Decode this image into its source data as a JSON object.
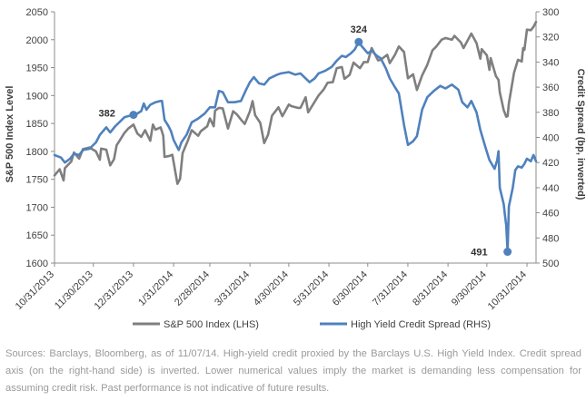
{
  "chart_data": {
    "type": "line",
    "y_left": {
      "label": "S&P 500 Index Level",
      "lim": [
        1600,
        2050
      ],
      "ticks": [
        1600,
        1650,
        1700,
        1750,
        1800,
        1850,
        1900,
        1950,
        2000,
        2050
      ]
    },
    "y_right": {
      "label": "Credit Spread (bp, inverted)",
      "lim": [
        300,
        500
      ],
      "inverted": true,
      "ticks": [
        300,
        320,
        340,
        360,
        380,
        400,
        420,
        440,
        460,
        480,
        500
      ]
    },
    "x_ticks": [
      "10/31/2013",
      "11/30/2013",
      "12/31/2013",
      "1/31/2014",
      "2/28/2014",
      "3/31/2014",
      "4/30/2014",
      "5/31/2014",
      "6/30/2014",
      "7/31/2014",
      "8/31/2014",
      "9/30/2014",
      "10/31/2014"
    ],
    "x_range": [
      "2013-10-31",
      "2014-11-07"
    ],
    "grid": false,
    "legend_position": "bottom",
    "series": [
      {
        "name": "S&P 500 Index (LHS)",
        "axis": "left",
        "color": "#7f7f7f",
        "points": [
          [
            "2013-10-31",
            1757
          ],
          [
            "2013-11-04",
            1768
          ],
          [
            "2013-11-07",
            1748
          ],
          [
            "2013-11-08",
            1770
          ],
          [
            "2013-11-13",
            1782
          ],
          [
            "2013-11-15",
            1798
          ],
          [
            "2013-11-19",
            1787
          ],
          [
            "2013-11-22",
            1804
          ],
          [
            "2013-11-27",
            1807
          ],
          [
            "2013-12-02",
            1800
          ],
          [
            "2013-12-05",
            1785
          ],
          [
            "2013-12-06",
            1805
          ],
          [
            "2013-12-10",
            1803
          ],
          [
            "2013-12-13",
            1775
          ],
          [
            "2013-12-16",
            1786
          ],
          [
            "2013-12-18",
            1811
          ],
          [
            "2013-12-20",
            1818
          ],
          [
            "2013-12-24",
            1833
          ],
          [
            "2013-12-27",
            1841
          ],
          [
            "2013-12-31",
            1848
          ],
          [
            "2014-01-03",
            1832
          ],
          [
            "2014-01-06",
            1826
          ],
          [
            "2014-01-09",
            1838
          ],
          [
            "2014-01-13",
            1819
          ],
          [
            "2014-01-15",
            1848
          ],
          [
            "2014-01-17",
            1839
          ],
          [
            "2014-01-21",
            1843
          ],
          [
            "2014-01-23",
            1828
          ],
          [
            "2014-01-24",
            1790
          ],
          [
            "2014-01-28",
            1792
          ],
          [
            "2014-01-30",
            1794
          ],
          [
            "2014-02-03",
            1742
          ],
          [
            "2014-02-05",
            1751
          ],
          [
            "2014-02-07",
            1797
          ],
          [
            "2014-02-11",
            1819
          ],
          [
            "2014-02-14",
            1838
          ],
          [
            "2014-02-19",
            1828
          ],
          [
            "2014-02-21",
            1836
          ],
          [
            "2014-02-26",
            1845
          ],
          [
            "2014-02-28",
            1859
          ],
          [
            "2014-03-03",
            1845
          ],
          [
            "2014-03-04",
            1873
          ],
          [
            "2014-03-07",
            1878
          ],
          [
            "2014-03-10",
            1877
          ],
          [
            "2014-03-14",
            1841
          ],
          [
            "2014-03-18",
            1872
          ],
          [
            "2014-03-21",
            1866
          ],
          [
            "2014-03-24",
            1857
          ],
          [
            "2014-03-27",
            1849
          ],
          [
            "2014-03-31",
            1872
          ],
          [
            "2014-04-02",
            1890
          ],
          [
            "2014-04-04",
            1865
          ],
          [
            "2014-04-08",
            1851
          ],
          [
            "2014-04-11",
            1815
          ],
          [
            "2014-04-14",
            1830
          ],
          [
            "2014-04-17",
            1864
          ],
          [
            "2014-04-22",
            1879
          ],
          [
            "2014-04-25",
            1863
          ],
          [
            "2014-04-30",
            1884
          ],
          [
            "2014-05-02",
            1881
          ],
          [
            "2014-05-07",
            1878
          ],
          [
            "2014-05-09",
            1878
          ],
          [
            "2014-05-13",
            1897
          ],
          [
            "2014-05-15",
            1870
          ],
          [
            "2014-05-19",
            1885
          ],
          [
            "2014-05-23",
            1900
          ],
          [
            "2014-05-27",
            1911
          ],
          [
            "2014-05-30",
            1923
          ],
          [
            "2014-06-03",
            1924
          ],
          [
            "2014-06-06",
            1949
          ],
          [
            "2014-06-10",
            1951
          ],
          [
            "2014-06-12",
            1930
          ],
          [
            "2014-06-16",
            1937
          ],
          [
            "2014-06-19",
            1959
          ],
          [
            "2014-06-24",
            1949
          ],
          [
            "2014-06-27",
            1960
          ],
          [
            "2014-06-30",
            1960
          ],
          [
            "2014-07-03",
            1985
          ],
          [
            "2014-07-08",
            1963
          ],
          [
            "2014-07-10",
            1964
          ],
          [
            "2014-07-15",
            1973
          ],
          [
            "2014-07-17",
            1958
          ],
          [
            "2014-07-21",
            1973
          ],
          [
            "2014-07-24",
            1988
          ],
          [
            "2014-07-28",
            1978
          ],
          [
            "2014-07-31",
            1931
          ],
          [
            "2014-08-04",
            1938
          ],
          [
            "2014-08-07",
            1910
          ],
          [
            "2014-08-11",
            1936
          ],
          [
            "2014-08-15",
            1955
          ],
          [
            "2014-08-19",
            1981
          ],
          [
            "2014-08-22",
            1988
          ],
          [
            "2014-08-26",
            2000
          ],
          [
            "2014-08-29",
            2003
          ],
          [
            "2014-09-03",
            2000
          ],
          [
            "2014-09-05",
            2007
          ],
          [
            "2014-09-10",
            1995
          ],
          [
            "2014-09-12",
            1985
          ],
          [
            "2014-09-18",
            2011
          ],
          [
            "2014-09-22",
            1994
          ],
          [
            "2014-09-25",
            1966
          ],
          [
            "2014-09-26",
            1983
          ],
          [
            "2014-09-30",
            1972
          ],
          [
            "2014-10-02",
            1946
          ],
          [
            "2014-10-03",
            1967
          ],
          [
            "2014-10-07",
            1935
          ],
          [
            "2014-10-09",
            1928
          ],
          [
            "2014-10-10",
            1906
          ],
          [
            "2014-10-13",
            1874
          ],
          [
            "2014-10-15",
            1862
          ],
          [
            "2014-10-16",
            1863
          ],
          [
            "2014-10-17",
            1886
          ],
          [
            "2014-10-21",
            1941
          ],
          [
            "2014-10-24",
            1964
          ],
          [
            "2014-10-27",
            1961
          ],
          [
            "2014-10-28",
            1985
          ],
          [
            "2014-10-29",
            1982
          ],
          [
            "2014-10-31",
            2018
          ],
          [
            "2014-11-03",
            2017
          ],
          [
            "2014-11-05",
            2023
          ],
          [
            "2014-11-07",
            2032
          ]
        ]
      },
      {
        "name": "High Yield Credit Spread (RHS)",
        "axis": "right",
        "color": "#4f81bd",
        "points": [
          [
            "2013-10-31",
            414
          ],
          [
            "2013-11-05",
            416
          ],
          [
            "2013-11-08",
            420
          ],
          [
            "2013-11-12",
            417
          ],
          [
            "2013-11-15",
            413
          ],
          [
            "2013-11-19",
            414
          ],
          [
            "2013-11-22",
            410
          ],
          [
            "2013-11-27",
            409
          ],
          [
            "2013-12-02",
            404
          ],
          [
            "2013-12-05",
            398
          ],
          [
            "2013-12-10",
            392
          ],
          [
            "2013-12-13",
            396
          ],
          [
            "2013-12-17",
            391
          ],
          [
            "2013-12-20",
            388
          ],
          [
            "2013-12-24",
            384
          ],
          [
            "2013-12-27",
            383
          ],
          [
            "2013-12-31",
            382
          ],
          [
            "2014-01-03",
            381
          ],
          [
            "2014-01-06",
            379
          ],
          [
            "2014-01-08",
            373
          ],
          [
            "2014-01-10",
            378
          ],
          [
            "2014-01-13",
            374
          ],
          [
            "2014-01-15",
            373
          ],
          [
            "2014-01-17",
            372
          ],
          [
            "2014-01-21",
            371
          ],
          [
            "2014-01-22",
            371
          ],
          [
            "2014-01-24",
            386
          ],
          [
            "2014-01-27",
            391
          ],
          [
            "2014-01-29",
            395
          ],
          [
            "2014-01-31",
            402
          ],
          [
            "2014-02-03",
            408
          ],
          [
            "2014-02-04",
            410
          ],
          [
            "2014-02-06",
            404
          ],
          [
            "2014-02-10",
            398
          ],
          [
            "2014-02-14",
            388
          ],
          [
            "2014-02-19",
            385
          ],
          [
            "2014-02-24",
            381
          ],
          [
            "2014-02-28",
            376
          ],
          [
            "2014-03-04",
            376
          ],
          [
            "2014-03-07",
            363
          ],
          [
            "2014-03-10",
            364
          ],
          [
            "2014-03-14",
            372
          ],
          [
            "2014-03-19",
            372
          ],
          [
            "2014-03-24",
            371
          ],
          [
            "2014-03-28",
            362
          ],
          [
            "2014-03-31",
            356
          ],
          [
            "2014-04-03",
            352
          ],
          [
            "2014-04-07",
            357
          ],
          [
            "2014-04-11",
            358
          ],
          [
            "2014-04-15",
            353
          ],
          [
            "2014-04-21",
            350
          ],
          [
            "2014-04-24",
            349
          ],
          [
            "2014-04-30",
            348
          ],
          [
            "2014-05-05",
            350
          ],
          [
            "2014-05-09",
            349
          ],
          [
            "2014-05-13",
            353
          ],
          [
            "2014-05-16",
            356
          ],
          [
            "2014-05-20",
            353
          ],
          [
            "2014-05-23",
            349
          ],
          [
            "2014-05-28",
            347
          ],
          [
            "2014-06-02",
            344
          ],
          [
            "2014-06-06",
            339
          ],
          [
            "2014-06-10",
            335
          ],
          [
            "2014-06-13",
            336
          ],
          [
            "2014-06-17",
            333
          ],
          [
            "2014-06-20",
            330
          ],
          [
            "2014-06-23",
            324
          ],
          [
            "2014-06-25",
            327
          ],
          [
            "2014-06-30",
            333
          ],
          [
            "2014-07-03",
            331
          ],
          [
            "2014-07-07",
            335
          ],
          [
            "2014-07-10",
            337
          ],
          [
            "2014-07-14",
            345
          ],
          [
            "2014-07-17",
            353
          ],
          [
            "2014-07-21",
            360
          ],
          [
            "2014-07-24",
            365
          ],
          [
            "2014-07-28",
            390
          ],
          [
            "2014-07-31",
            406
          ],
          [
            "2014-08-04",
            403
          ],
          [
            "2014-08-07",
            399
          ],
          [
            "2014-08-11",
            378
          ],
          [
            "2014-08-15",
            368
          ],
          [
            "2014-08-20",
            363
          ],
          [
            "2014-08-25",
            359
          ],
          [
            "2014-08-29",
            361
          ],
          [
            "2014-09-03",
            358
          ],
          [
            "2014-09-08",
            362
          ],
          [
            "2014-09-11",
            372
          ],
          [
            "2014-09-15",
            376
          ],
          [
            "2014-09-18",
            371
          ],
          [
            "2014-09-22",
            380
          ],
          [
            "2014-09-25",
            394
          ],
          [
            "2014-09-29",
            408
          ],
          [
            "2014-10-02",
            418
          ],
          [
            "2014-10-06",
            425
          ],
          [
            "2014-10-08",
            418
          ],
          [
            "2014-10-09",
            411
          ],
          [
            "2014-10-10",
            440
          ],
          [
            "2014-10-13",
            453
          ],
          [
            "2014-10-14",
            462
          ],
          [
            "2014-10-15",
            470
          ],
          [
            "2014-10-16",
            491
          ],
          [
            "2014-10-17",
            455
          ],
          [
            "2014-10-20",
            440
          ],
          [
            "2014-10-22",
            426
          ],
          [
            "2014-10-24",
            423
          ],
          [
            "2014-10-27",
            424
          ],
          [
            "2014-10-29",
            421
          ],
          [
            "2014-10-31",
            417
          ],
          [
            "2014-11-03",
            419
          ],
          [
            "2014-11-05",
            414
          ],
          [
            "2014-11-07",
            419
          ]
        ]
      }
    ],
    "annotations": [
      {
        "label": "382",
        "date": "2013-12-31",
        "value": 382,
        "axis": "right"
      },
      {
        "label": "324",
        "date": "2014-06-23",
        "value": 324,
        "axis": "right"
      },
      {
        "label": "491",
        "date": "2014-10-16",
        "value": 491,
        "axis": "right"
      }
    ]
  },
  "source_note": "Sources: Barclays, Bloomberg, as of 11/07/14. High-yield credit proxied by the Barclays U.S. High Yield Index. Credit spread axis (on the right-hand side) is inverted. Lower numerical values imply the market is demanding less compensation for assuming credit risk. Past performance is not indicative of future results."
}
